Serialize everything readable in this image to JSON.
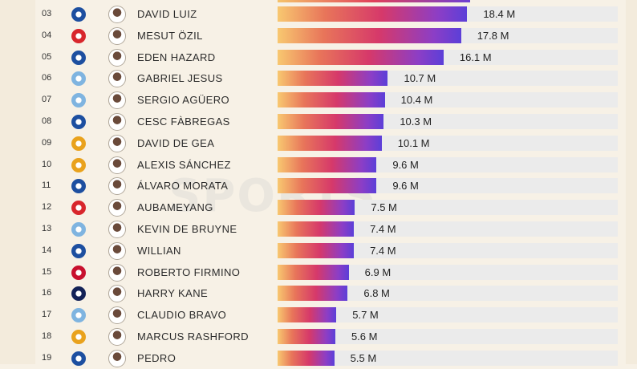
{
  "chart_data": {
    "type": "bar",
    "orientation": "horizontal",
    "unit_suffix": " M",
    "rows": [
      {
        "rank": "03",
        "player": "DAVID LUIZ",
        "club": "chelsea",
        "value": 18.4,
        "label": "18.4 M"
      },
      {
        "rank": "04",
        "player": "MESUT ÖZIL",
        "club": "arsenal",
        "value": 17.8,
        "label": "17.8 M"
      },
      {
        "rank": "05",
        "player": "EDEN HAZARD",
        "club": "chelsea",
        "value": 16.1,
        "label": "16.1 M"
      },
      {
        "rank": "06",
        "player": "GABRIEL JESUS",
        "club": "manchester-city",
        "value": 10.7,
        "label": "10.7 M"
      },
      {
        "rank": "07",
        "player": "SERGIO AGÜERO",
        "club": "manchester-city",
        "value": 10.4,
        "label": "10.4 M"
      },
      {
        "rank": "08",
        "player": "CESC FÀBREGAS",
        "club": "chelsea",
        "value": 10.3,
        "label": "10.3 M"
      },
      {
        "rank": "09",
        "player": "DAVID DE GEA",
        "club": "manchester-united",
        "value": 10.1,
        "label": "10.1 M"
      },
      {
        "rank": "10",
        "player": "ALEXIS SÁNCHEZ",
        "club": "manchester-united",
        "value": 9.6,
        "label": "9.6 M"
      },
      {
        "rank": "11",
        "player": "ÁLVARO MORATA",
        "club": "chelsea",
        "value": 9.6,
        "label": "9.6 M"
      },
      {
        "rank": "12",
        "player": "AUBAMEYANG",
        "club": "arsenal",
        "value": 7.5,
        "label": "7.5 M"
      },
      {
        "rank": "13",
        "player": "KEVIN DE BRUYNE",
        "club": "manchester-city",
        "value": 7.4,
        "label": "7.4 M"
      },
      {
        "rank": "14",
        "player": "WILLIAN",
        "club": "chelsea",
        "value": 7.4,
        "label": "7.4 M"
      },
      {
        "rank": "15",
        "player": "ROBERTO FIRMINO",
        "club": "liverpool",
        "value": 6.9,
        "label": "6.9 M"
      },
      {
        "rank": "16",
        "player": "HARRY KANE",
        "club": "tottenham",
        "value": 6.8,
        "label": "6.8 M"
      },
      {
        "rank": "17",
        "player": "CLAUDIO BRAVO",
        "club": "manchester-city",
        "value": 5.7,
        "label": "5.7 M"
      },
      {
        "rank": "18",
        "player": "MARCUS RASHFORD",
        "club": "manchester-united",
        "value": 5.6,
        "label": "5.6 M"
      },
      {
        "rank": "19",
        "player": "PEDRO",
        "club": "chelsea",
        "value": 5.5,
        "label": "5.5 M"
      }
    ],
    "xlim": [
      0,
      33
    ],
    "grid": false,
    "legend": "none"
  },
  "club_colors": {
    "chelsea": "#1d4fa0",
    "arsenal": "#d8262c",
    "manchester-city": "#7fb4e0",
    "manchester-united": "#e9a21d",
    "liverpool": "#c8102e",
    "tottenham": "#132257"
  },
  "club_icons": {
    "chelsea": "chelsea-crest-icon",
    "arsenal": "arsenal-crest-icon",
    "manchester-city": "manchester-city-crest-icon",
    "manchester-united": "manchester-united-crest-icon",
    "liverpool": "liverpool-crest-icon",
    "tottenham": "tottenham-crest-icon"
  },
  "watermark": "SPORTS",
  "bar_gradient": [
    "#f8c870",
    "#e8755a",
    "#d6396a",
    "#8c3ec6",
    "#5c3fd8"
  ],
  "track_color": "#ebebeb"
}
